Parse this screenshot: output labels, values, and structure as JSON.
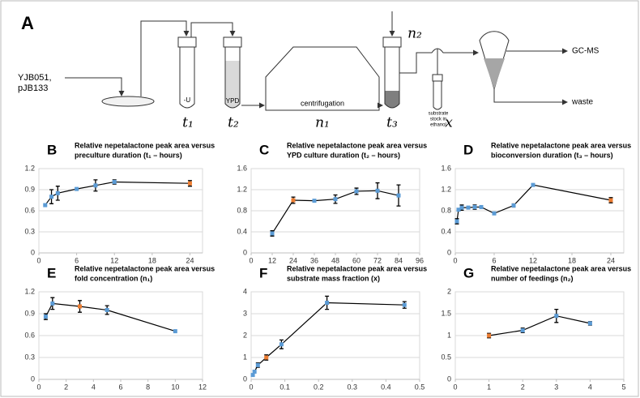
{
  "diagram": {
    "label": "A",
    "strain": [
      "YJB051,",
      "pJB133"
    ],
    "tube1": "-U",
    "tube2": "YPD",
    "machine": "centrifugation",
    "substrate": [
      "substrate",
      "stock in",
      "ethanol"
    ],
    "out1": "GC-MS",
    "out2": "waste",
    "t1": "t₁",
    "t2": "t₂",
    "n1": "n₁",
    "t3": "t₃",
    "x": "x",
    "n2": "n₂"
  },
  "chart_data": [
    {
      "type": "line",
      "panel": "B",
      "title": [
        "Relative nepetalactone peak area versus",
        "preculture duration (t₁ – hours)"
      ],
      "x": [
        1,
        2,
        3,
        6,
        9,
        12,
        24
      ],
      "xlim": [
        0,
        26
      ],
      "xticks": [
        0,
        6,
        12,
        18,
        24
      ],
      "ylim": [
        0,
        1.2
      ],
      "yticks": [
        0,
        0.3,
        0.6,
        0.9,
        1.2
      ],
      "grid": true,
      "line_color": "#000000",
      "series": [
        {
          "values": [
            0.68,
            0.8,
            0.85,
            0.91,
            0.96,
            1.01,
            0.99
          ],
          "errors": [
            null,
            0.1,
            0.1,
            null,
            0.08,
            0.03,
            0.04
          ],
          "point_colors": [
            "#5b9bd5",
            "#5b9bd5",
            "#5b9bd5",
            "#5b9bd5",
            "#5b9bd5",
            "#5b9bd5",
            "#ed7d31"
          ]
        }
      ]
    },
    {
      "type": "line",
      "panel": "C",
      "title": [
        "Relative nepetalactone peak area versus",
        "YPD culture duration (t₂ – hours)"
      ],
      "x": [
        12,
        24,
        36,
        48,
        60,
        72,
        84
      ],
      "xlim": [
        0,
        96
      ],
      "xticks": [
        0,
        12,
        24,
        36,
        48,
        60,
        72,
        84,
        96
      ],
      "ylim": [
        0,
        1.6
      ],
      "yticks": [
        0,
        0.4,
        0.8,
        1.2,
        1.6
      ],
      "grid": true,
      "line_color": "#000000",
      "series": [
        {
          "values": [
            0.37,
            1.0,
            0.99,
            1.02,
            1.17,
            1.18,
            1.09
          ],
          "errors": [
            0.05,
            0.06,
            null,
            0.08,
            0.06,
            0.15,
            0.2
          ],
          "point_colors": [
            "#5b9bd5",
            "#ed7d31",
            "#5b9bd5",
            "#5b9bd5",
            "#5b9bd5",
            "#5b9bd5",
            "#5b9bd5"
          ]
        }
      ]
    },
    {
      "type": "line",
      "panel": "D",
      "title": [
        "Relative nepetalactone peak area versus",
        "bioconversion duration (t₃ – hours)"
      ],
      "x": [
        0.25,
        0.5,
        1,
        2,
        3,
        4,
        6,
        9,
        12,
        24
      ],
      "xlim": [
        0,
        26
      ],
      "xticks": [
        0,
        6,
        12,
        18,
        24
      ],
      "ylim": [
        0,
        1.6
      ],
      "yticks": [
        0,
        0.4,
        0.8,
        1.2,
        1.6
      ],
      "grid": true,
      "line_color": "#000000",
      "series": [
        {
          "values": [
            0.6,
            0.82,
            0.86,
            0.86,
            0.87,
            0.87,
            0.75,
            0.9,
            1.29,
            1.0
          ],
          "errors": [
            0.05,
            null,
            0.05,
            null,
            0.04,
            null,
            null,
            0.03,
            null,
            0.05
          ],
          "point_colors": [
            "#5b9bd5",
            "#5b9bd5",
            "#5b9bd5",
            "#5b9bd5",
            "#5b9bd5",
            "#5b9bd5",
            "#5b9bd5",
            "#5b9bd5",
            "#5b9bd5",
            "#ed7d31"
          ]
        }
      ]
    },
    {
      "type": "line",
      "panel": "E",
      "title": [
        "Relative nepetalactone peak area versus",
        "fold concentration (n₁)"
      ],
      "x": [
        0.5,
        1,
        3,
        5,
        10
      ],
      "xlim": [
        0,
        12
      ],
      "xticks": [
        0,
        2,
        4,
        6,
        8,
        10,
        12
      ],
      "ylim": [
        0,
        1.2
      ],
      "yticks": [
        0,
        0.3,
        0.6,
        0.9,
        1.2
      ],
      "grid": true,
      "line_color": "#000000",
      "series": [
        {
          "values": [
            0.86,
            1.04,
            1.0,
            0.95,
            0.66
          ],
          "errors": [
            0.04,
            0.08,
            0.08,
            0.06,
            null
          ],
          "point_colors": [
            "#5b9bd5",
            "#5b9bd5",
            "#ed7d31",
            "#5b9bd5",
            "#5b9bd5"
          ]
        }
      ]
    },
    {
      "type": "line",
      "panel": "F",
      "title": [
        "Relative nepetalactone peak area versus",
        "substrate mass fraction (x)"
      ],
      "x": [
        0.005,
        0.01,
        0.02,
        0.045,
        0.09,
        0.225,
        0.455
      ],
      "xlim": [
        0,
        0.5
      ],
      "xticks": [
        0,
        0.1,
        0.2,
        0.3,
        0.4,
        0.5
      ],
      "ylim": [
        0,
        4
      ],
      "yticks": [
        0,
        1,
        2,
        3,
        4
      ],
      "grid": true,
      "line_color": "#000000",
      "series": [
        {
          "values": [
            0.2,
            0.35,
            0.65,
            1.0,
            1.6,
            3.5,
            3.4
          ],
          "errors": [
            null,
            null,
            0.1,
            0.12,
            0.2,
            0.3,
            0.15
          ],
          "point_colors": [
            "#5b9bd5",
            "#5b9bd5",
            "#5b9bd5",
            "#ed7d31",
            "#5b9bd5",
            "#5b9bd5",
            "#5b9bd5"
          ]
        }
      ]
    },
    {
      "type": "line",
      "panel": "G",
      "title": [
        "Relative nepetalactone peak area versus",
        "number of feedings (n₂)"
      ],
      "x": [
        1,
        2,
        3,
        4
      ],
      "xlim": [
        0,
        5
      ],
      "xticks": [
        0,
        1,
        2,
        3,
        4,
        5
      ],
      "ylim": [
        0,
        2
      ],
      "yticks": [
        0,
        0.5,
        1,
        1.5,
        2
      ],
      "grid": true,
      "line_color": "#000000",
      "series": [
        {
          "values": [
            1.0,
            1.12,
            1.45,
            1.28
          ],
          "errors": [
            0.05,
            0.05,
            0.15,
            0.04
          ],
          "point_colors": [
            "#ed7d31",
            "#5b9bd5",
            "#5b9bd5",
            "#5b9bd5"
          ]
        }
      ]
    }
  ]
}
